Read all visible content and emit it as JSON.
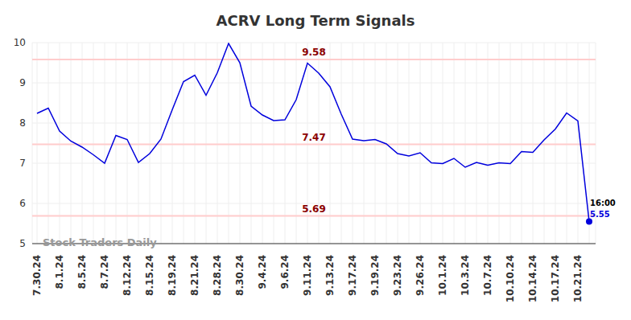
{
  "chart_data": {
    "type": "line",
    "title": "ACRV Long Term Signals",
    "categories": [
      "7.30.24",
      null,
      "8.1.24",
      null,
      "8.5.24",
      null,
      "8.7.24",
      null,
      "8.12.24",
      null,
      "8.15.24",
      null,
      "8.19.24",
      null,
      "8.21.24",
      null,
      "8.28.24",
      null,
      "8.30.24",
      null,
      "9.4.24",
      null,
      "9.6.24",
      null,
      "9.11.24",
      null,
      "9.13.24",
      null,
      "9.17.24",
      null,
      "9.19.24",
      null,
      "9.23.24",
      null,
      "9.26.24",
      null,
      "10.1.24",
      null,
      "10.3.24",
      null,
      "10.7.24",
      null,
      "10.10.24",
      null,
      "10.14.24",
      null,
      "10.17.24",
      null,
      "10.21.24",
      null
    ],
    "values": [
      8.24,
      8.37,
      7.8,
      7.55,
      7.4,
      7.21,
      7.0,
      7.69,
      7.59,
      7.02,
      7.24,
      7.6,
      8.33,
      9.03,
      9.19,
      8.69,
      9.25,
      9.98,
      9.5,
      8.42,
      8.2,
      8.06,
      8.08,
      8.58,
      9.49,
      9.24,
      8.9,
      8.22,
      7.6,
      7.56,
      7.59,
      7.48,
      7.24,
      7.18,
      7.26,
      7.01,
      6.99,
      7.12,
      6.9,
      7.02,
      6.95,
      7.01,
      6.99,
      7.29,
      7.27,
      7.58,
      7.85,
      8.25,
      8.05,
      5.55
    ],
    "color": "#0000dd",
    "ylim": [
      5,
      10
    ],
    "yticks": [
      5,
      6,
      7,
      8,
      9,
      10
    ],
    "grid": true,
    "reference_lines": [
      9.58,
      7.47,
      5.69
    ],
    "annotations": [
      "Stock Traders Daily",
      "16:00"
    ]
  }
}
